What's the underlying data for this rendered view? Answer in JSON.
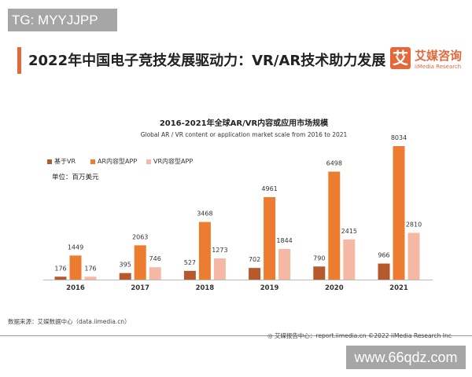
{
  "watermark_top": "TG: MYYJJPP",
  "watermark_bottom": "www.66qdz.com",
  "header": {
    "title": "2022年中国电子竞技发展驱动力：VR/AR技术助力发展",
    "logo_mark": "艾",
    "logo_cn": "艾媒咨询",
    "logo_en": "iiMedia Research",
    "accent": "#e4683a"
  },
  "unit": "单位：百万美元",
  "source": "数据来源：艾媒数据中心（data.iimedia.cn）",
  "footer": "艾媒报告中心：report.iimedia.cn   ©2022  iiMedia Research  Inc",
  "chart_data": {
    "type": "bar",
    "title": "2016-2021年全球AR/VR内容或应用市场规模",
    "subtitle": "Global AR / VR content or application market scale from 2016 to 2021",
    "categories": [
      "2016",
      "2017",
      "2018",
      "2019",
      "2020",
      "2021"
    ],
    "legend_placement": "top-left",
    "grid": false,
    "series": [
      {
        "name": "基于VR",
        "color": "#b65a2e",
        "values": [
          176,
          395,
          527,
          702,
          790,
          966
        ]
      },
      {
        "name": "AR内容型APP",
        "color": "#ec7c30",
        "values": [
          1449,
          2063,
          3468,
          4961,
          6498,
          8034
        ]
      },
      {
        "name": "VR内容型APP",
        "color": "#f4b8a4",
        "values": [
          176,
          746,
          1273,
          1844,
          2415,
          2810
        ]
      }
    ]
  }
}
